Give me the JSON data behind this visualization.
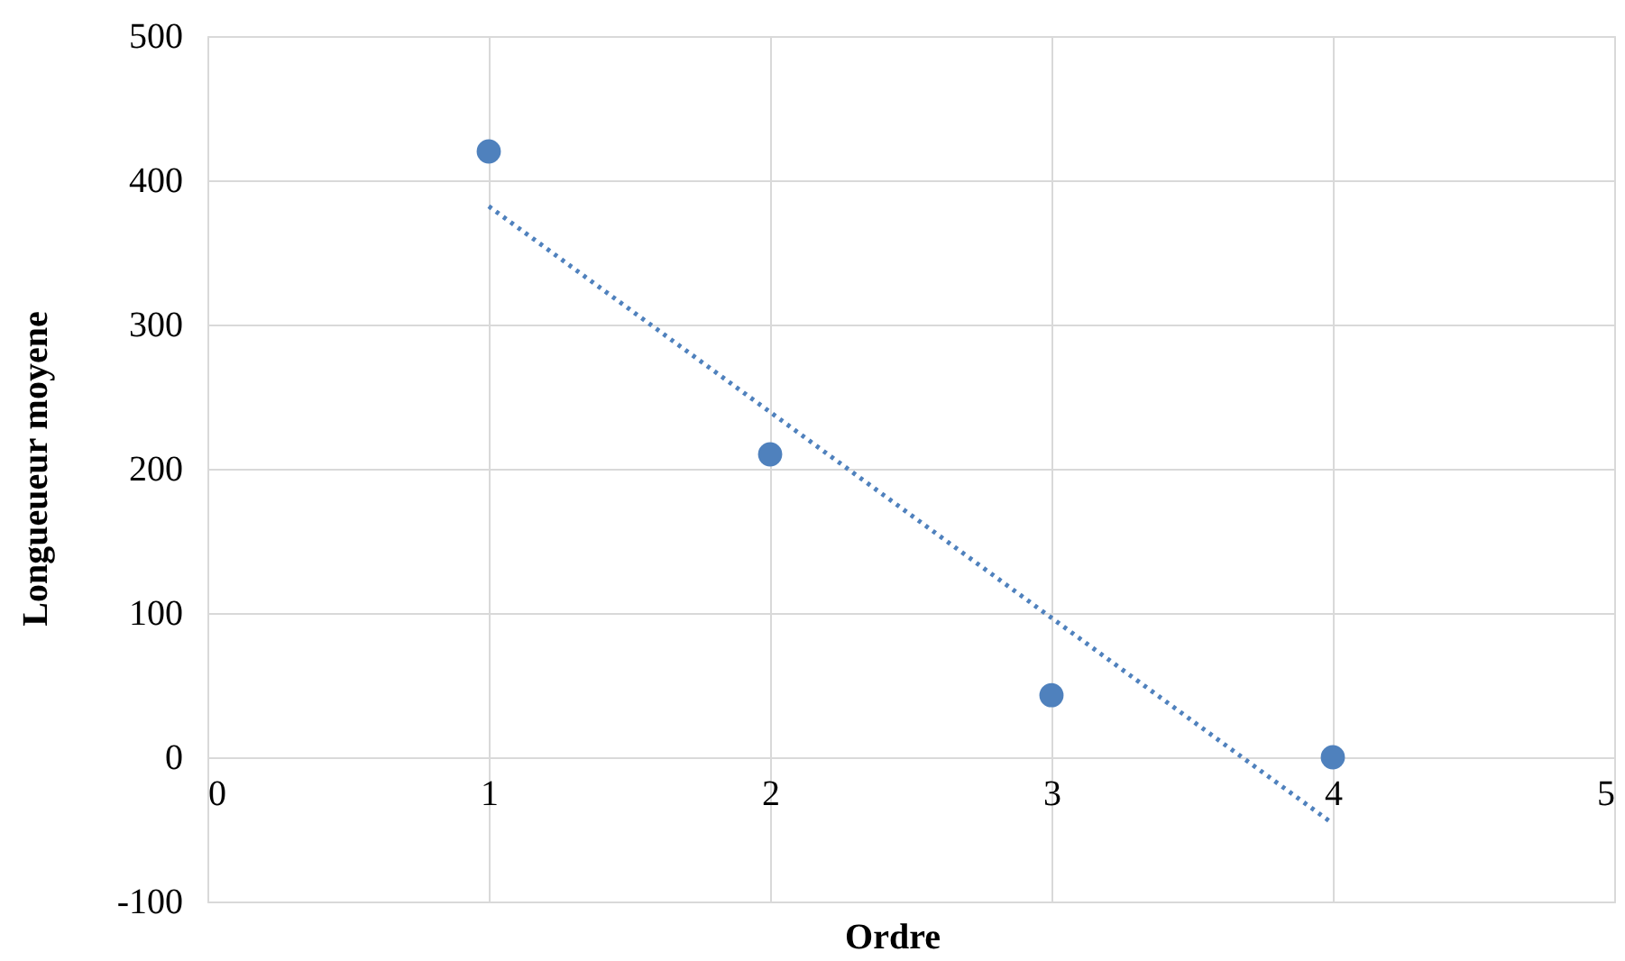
{
  "chart_data": {
    "type": "scatter",
    "xlabel": "Ordre",
    "ylabel": "Longueueur moyene",
    "xlim": [
      0,
      5
    ],
    "xticks": [
      0,
      1,
      2,
      3,
      4,
      5
    ],
    "ylim": [
      -100,
      500
    ],
    "yticks": [
      -100,
      0,
      100,
      200,
      300,
      400,
      500
    ],
    "grid": true,
    "marker": "circle",
    "series": [
      {
        "color": "#4f81bd",
        "x": [
          1,
          2,
          3,
          4
        ],
        "values": [
          420,
          210,
          43,
          0
        ]
      },
      {
        "type": "line",
        "color": "#4f81bd",
        "line_style": "dotted",
        "marker": "none",
        "x": [
          1,
          4
        ],
        "values": [
          382,
          -46
        ]
      }
    ]
  }
}
